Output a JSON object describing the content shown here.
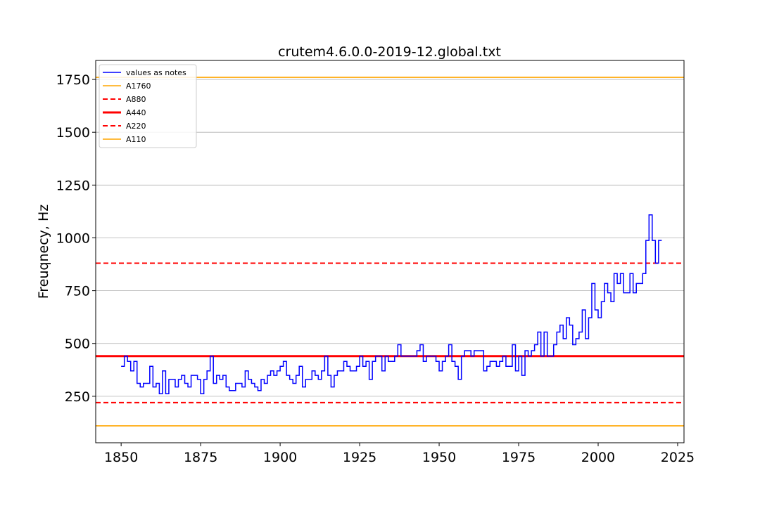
{
  "chart_data": {
    "type": "line",
    "title": "crutem4.6.0.0-2019-12.global.txt",
    "xlabel": "",
    "ylabel": "Freuqnecy, Hz",
    "xlim": [
      1842,
      2027
    ],
    "ylim": [
      30,
      1840
    ],
    "xticks": [
      1850,
      1875,
      1900,
      1925,
      1950,
      1975,
      2000,
      2025
    ],
    "yticks": [
      250,
      500,
      750,
      1000,
      1250,
      1500,
      1750
    ],
    "grid": "horizontal",
    "legend_position": "upper-left",
    "series": [
      {
        "name": "values as notes",
        "style": "step",
        "color": "#0000ff",
        "x": [
          1850,
          1851,
          1852,
          1853,
          1854,
          1855,
          1856,
          1857,
          1858,
          1859,
          1860,
          1861,
          1862,
          1863,
          1864,
          1865,
          1866,
          1867,
          1868,
          1869,
          1870,
          1871,
          1872,
          1873,
          1874,
          1875,
          1876,
          1877,
          1878,
          1879,
          1880,
          1881,
          1882,
          1883,
          1884,
          1885,
          1886,
          1887,
          1888,
          1889,
          1890,
          1891,
          1892,
          1893,
          1894,
          1895,
          1896,
          1897,
          1898,
          1899,
          1900,
          1901,
          1902,
          1903,
          1904,
          1905,
          1906,
          1907,
          1908,
          1909,
          1910,
          1911,
          1912,
          1913,
          1914,
          1915,
          1916,
          1917,
          1918,
          1919,
          1920,
          1921,
          1922,
          1923,
          1924,
          1925,
          1926,
          1927,
          1928,
          1929,
          1930,
          1931,
          1932,
          1933,
          1934,
          1935,
          1936,
          1937,
          1938,
          1939,
          1940,
          1941,
          1942,
          1943,
          1944,
          1945,
          1946,
          1947,
          1948,
          1949,
          1950,
          1951,
          1952,
          1953,
          1954,
          1955,
          1956,
          1957,
          1958,
          1959,
          1960,
          1961,
          1962,
          1963,
          1964,
          1965,
          1966,
          1967,
          1968,
          1969,
          1970,
          1971,
          1972,
          1973,
          1974,
          1975,
          1976,
          1977,
          1978,
          1979,
          1980,
          1981,
          1982,
          1983,
          1984,
          1985,
          1986,
          1987,
          1988,
          1989,
          1990,
          1991,
          1992,
          1993,
          1994,
          1995,
          1996,
          1997,
          1998,
          1999,
          2000,
          2001,
          2002,
          2003,
          2004,
          2005,
          2006,
          2007,
          2008,
          2009,
          2010,
          2011,
          2012,
          2013,
          2014,
          2015,
          2016,
          2017,
          2018,
          2019
        ],
        "y": [
          392,
          440,
          415,
          370,
          415,
          311,
          294,
          311,
          311,
          392,
          294,
          311,
          262,
          370,
          262,
          330,
          330,
          294,
          330,
          349,
          311,
          294,
          349,
          349,
          330,
          262,
          330,
          370,
          440,
          311,
          349,
          330,
          349,
          294,
          277,
          277,
          311,
          311,
          294,
          370,
          330,
          311,
          294,
          277,
          330,
          311,
          349,
          370,
          349,
          370,
          392,
          415,
          349,
          330,
          311,
          349,
          392,
          294,
          330,
          330,
          370,
          349,
          330,
          370,
          440,
          349,
          294,
          349,
          370,
          370,
          415,
          392,
          370,
          370,
          392,
          440,
          392,
          415,
          330,
          415,
          440,
          440,
          370,
          440,
          415,
          415,
          440,
          494,
          440,
          440,
          440,
          440,
          440,
          466,
          494,
          415,
          440,
          440,
          440,
          415,
          370,
          415,
          440,
          494,
          415,
          392,
          330,
          440,
          466,
          466,
          440,
          466,
          466,
          466,
          370,
          392,
          415,
          415,
          392,
          415,
          440,
          392,
          392,
          494,
          370,
          440,
          349,
          466,
          440,
          466,
          494,
          554,
          440,
          554,
          440,
          440,
          494,
          554,
          587,
          523,
          622,
          587,
          494,
          523,
          554,
          659,
          523,
          622,
          784,
          659,
          622,
          698,
          784,
          740,
          698,
          831,
          784,
          831,
          740,
          740,
          831,
          740,
          784,
          784,
          831,
          988,
          1109,
          988,
          880,
          988
        ]
      },
      {
        "name": "A1760",
        "style": "hline",
        "value": 1760,
        "color": "#ffa500",
        "dash": "solid"
      },
      {
        "name": "A880",
        "style": "hline",
        "value": 880,
        "color": "#ff0000",
        "dash": "dashed"
      },
      {
        "name": "A440",
        "style": "hline",
        "value": 440,
        "color": "#ff0000",
        "dash": "solid-thick"
      },
      {
        "name": "A220",
        "style": "hline",
        "value": 220,
        "color": "#ff0000",
        "dash": "dashed"
      },
      {
        "name": "A110",
        "style": "hline",
        "value": 110,
        "color": "#ffa500",
        "dash": "solid"
      }
    ]
  }
}
